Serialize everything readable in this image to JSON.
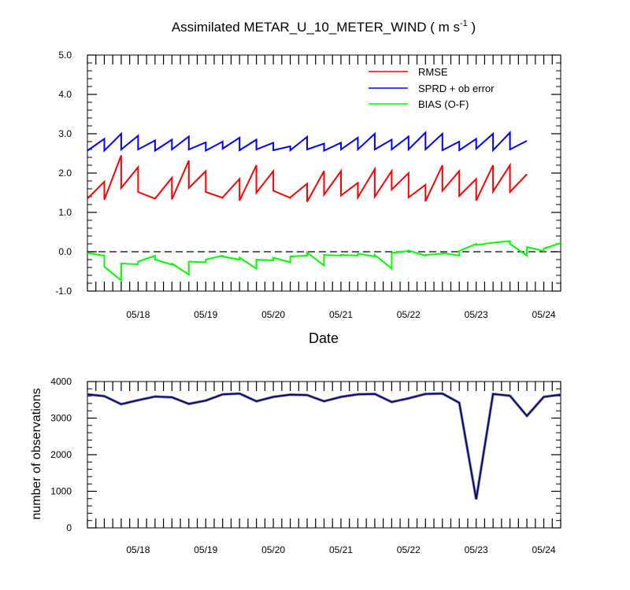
{
  "chart_data": [
    {
      "type": "line",
      "title_main": "Assimilated METAR_U_10_METER_WIND ( m s",
      "title_sup": "-1",
      "title_end": " )",
      "xlabel": "Date",
      "ylabel": "",
      "xlim": [
        0,
        7
      ],
      "ylim": [
        -1.0,
        5.0
      ],
      "yticks": [
        -1.0,
        0.0,
        1.0,
        2.0,
        3.0,
        4.0,
        5.0
      ],
      "ytick_labels": [
        "-1.0",
        "0.0",
        "1.0",
        "2.0",
        "3.0",
        "4.0",
        "5.0"
      ],
      "xtick_positions": [
        0.75,
        1.75,
        2.75,
        3.75,
        4.75,
        5.75,
        6.75
      ],
      "xtick_labels": [
        "05/18",
        "05/19",
        "05/20",
        "05/21",
        "05/22",
        "05/23",
        "05/24"
      ],
      "zero_line": true,
      "legend": {
        "placement": "top-right",
        "entries": [
          "RMSE",
          "SPRD + ob error",
          "BIAS (O-F)"
        ]
      },
      "series": [
        {
          "name": "RMSE",
          "color": "#ff0000",
          "points": [
            [
              0,
              1.35
            ],
            [
              0.25,
              1.78
            ],
            [
              0.25,
              1.32
            ],
            [
              0.5,
              2.45
            ],
            [
              0.5,
              1.62
            ],
            [
              0.75,
              2.15
            ],
            [
              0.75,
              1.52
            ],
            [
              1,
              1.35
            ],
            [
              1,
              1.35
            ],
            [
              1.25,
              1.88
            ],
            [
              1.25,
              1.33
            ],
            [
              1.5,
              2.32
            ],
            [
              1.5,
              1.62
            ],
            [
              1.75,
              2.05
            ],
            [
              1.75,
              1.52
            ],
            [
              2,
              1.37
            ],
            [
              2,
              1.38
            ],
            [
              2.25,
              1.85
            ],
            [
              2.25,
              1.3
            ],
            [
              2.5,
              2.2
            ],
            [
              2.5,
              1.5
            ],
            [
              2.75,
              2.05
            ],
            [
              2.75,
              1.55
            ],
            [
              3,
              1.37
            ],
            [
              3,
              1.38
            ],
            [
              3.25,
              1.73
            ],
            [
              3.25,
              1.27
            ],
            [
              3.5,
              2.05
            ],
            [
              3.5,
              1.45
            ],
            [
              3.75,
              2.05
            ],
            [
              3.75,
              1.43
            ],
            [
              4,
              1.75
            ],
            [
              4,
              1.38
            ],
            [
              4.25,
              2.1
            ],
            [
              4.25,
              1.4
            ],
            [
              4.5,
              2.05
            ],
            [
              4.5,
              1.58
            ],
            [
              4.75,
              2.0
            ],
            [
              4.75,
              1.38
            ],
            [
              5,
              1.7
            ],
            [
              5,
              1.28
            ],
            [
              5.25,
              2.2
            ],
            [
              5.25,
              1.55
            ],
            [
              5.5,
              2.05
            ],
            [
              5.5,
              1.42
            ],
            [
              5.75,
              1.85
            ],
            [
              5.75,
              1.3
            ],
            [
              6,
              2.2
            ],
            [
              6,
              1.53
            ],
            [
              6.25,
              2.2
            ],
            [
              6.25,
              1.52
            ],
            [
              6.5,
              1.97
            ]
          ]
        },
        {
          "name": "SPRD + ob error",
          "color": "#0000ff",
          "points": [
            [
              0,
              2.57
            ],
            [
              0.25,
              2.87
            ],
            [
              0.25,
              2.57
            ],
            [
              0.5,
              3.0
            ],
            [
              0.5,
              2.6
            ],
            [
              0.75,
              2.95
            ],
            [
              0.75,
              2.6
            ],
            [
              1,
              2.83
            ],
            [
              1,
              2.57
            ],
            [
              1.25,
              2.85
            ],
            [
              1.25,
              2.6
            ],
            [
              1.5,
              2.93
            ],
            [
              1.5,
              2.6
            ],
            [
              1.75,
              2.78
            ],
            [
              1.75,
              2.57
            ],
            [
              2,
              2.8
            ],
            [
              2,
              2.62
            ],
            [
              2.25,
              2.9
            ],
            [
              2.25,
              2.58
            ],
            [
              2.5,
              2.85
            ],
            [
              2.5,
              2.6
            ],
            [
              2.75,
              2.77
            ],
            [
              2.75,
              2.58
            ],
            [
              3,
              2.68
            ],
            [
              3,
              2.58
            ],
            [
              3.25,
              2.92
            ],
            [
              3.25,
              2.6
            ],
            [
              3.5,
              2.75
            ],
            [
              3.5,
              2.57
            ],
            [
              3.75,
              2.77
            ],
            [
              3.75,
              2.6
            ],
            [
              4,
              2.9
            ],
            [
              4,
              2.6
            ],
            [
              4.25,
              3.0
            ],
            [
              4.25,
              2.6
            ],
            [
              4.5,
              2.85
            ],
            [
              4.5,
              2.6
            ],
            [
              4.75,
              2.93
            ],
            [
              4.75,
              2.6
            ],
            [
              5,
              3.03
            ],
            [
              5,
              2.6
            ],
            [
              5.25,
              3.0
            ],
            [
              5.25,
              2.58
            ],
            [
              5.5,
              2.8
            ],
            [
              5.5,
              2.58
            ],
            [
              5.75,
              2.87
            ],
            [
              5.75,
              2.62
            ],
            [
              6,
              3.0
            ],
            [
              6,
              2.58
            ],
            [
              6.25,
              3.03
            ],
            [
              6.25,
              2.6
            ],
            [
              6.5,
              2.82
            ]
          ]
        },
        {
          "name": "BIAS (O-F)",
          "color": "#00ff00",
          "points": [
            [
              0,
              -0.03
            ],
            [
              0.25,
              -0.1
            ],
            [
              0.25,
              -0.38
            ],
            [
              0.5,
              -0.73
            ],
            [
              0.5,
              -0.3
            ],
            [
              0.75,
              -0.32
            ],
            [
              0.75,
              -0.25
            ],
            [
              1,
              -0.1
            ],
            [
              1,
              -0.2
            ],
            [
              1.25,
              -0.33
            ],
            [
              1.25,
              -0.3
            ],
            [
              1.5,
              -0.58
            ],
            [
              1.5,
              -0.25
            ],
            [
              1.75,
              -0.27
            ],
            [
              1.75,
              -0.2
            ],
            [
              2,
              -0.1
            ],
            [
              2,
              -0.12
            ],
            [
              2.25,
              -0.2
            ],
            [
              2.25,
              -0.15
            ],
            [
              2.5,
              -0.43
            ],
            [
              2.5,
              -0.2
            ],
            [
              2.75,
              -0.22
            ],
            [
              2.75,
              -0.15
            ],
            [
              3,
              -0.27
            ],
            [
              3,
              -0.12
            ],
            [
              3.25,
              -0.1
            ],
            [
              3.25,
              -0.02
            ],
            [
              3.5,
              -0.35
            ],
            [
              3.5,
              -0.08
            ],
            [
              3.75,
              -0.1
            ],
            [
              3.75,
              -0.08
            ],
            [
              4,
              -0.1
            ],
            [
              4,
              -0.05
            ],
            [
              4.25,
              -0.12
            ],
            [
              4.25,
              -0.08
            ],
            [
              4.5,
              -0.43
            ],
            [
              4.5,
              -0.03
            ],
            [
              4.75,
              0.02
            ],
            [
              4.75,
              0.03
            ],
            [
              5,
              -0.1
            ],
            [
              5,
              -0.08
            ],
            [
              5.25,
              -0.05
            ],
            [
              5.25,
              -0.03
            ],
            [
              5.5,
              -0.1
            ],
            [
              5.5,
              0.02
            ],
            [
              5.75,
              0.2
            ],
            [
              5.75,
              0.17
            ],
            [
              6,
              0.23
            ],
            [
              6,
              0.23
            ],
            [
              6.25,
              0.27
            ],
            [
              6.25,
              0.2
            ],
            [
              6.5,
              -0.1
            ],
            [
              6.5,
              0.12
            ],
            [
              6.75,
              0.02
            ],
            [
              6.75,
              0.08
            ],
            [
              7,
              0.22
            ]
          ]
        }
      ]
    },
    {
      "type": "line",
      "title": "",
      "xlabel": "",
      "ylabel": "number of observations",
      "xlim": [
        0,
        7
      ],
      "ylim": [
        0,
        4000
      ],
      "yticks": [
        0,
        1000,
        2000,
        3000,
        4000
      ],
      "ytick_labels": [
        "0",
        "1000",
        "2000",
        "3000",
        "4000"
      ],
      "xtick_positions": [
        0.75,
        1.75,
        2.75,
        3.75,
        4.75,
        5.75,
        6.75
      ],
      "xtick_labels": [
        "05/18",
        "05/19",
        "05/20",
        "05/21",
        "05/22",
        "05/23",
        "05/24"
      ],
      "series": [
        {
          "name": "number of observations",
          "color": "#000080",
          "points": [
            [
              0,
              3650
            ],
            [
              0.25,
              3600
            ],
            [
              0.5,
              3380
            ],
            [
              0.75,
              3490
            ],
            [
              1,
              3590
            ],
            [
              1.25,
              3570
            ],
            [
              1.5,
              3390
            ],
            [
              1.75,
              3480
            ],
            [
              2,
              3650
            ],
            [
              2.25,
              3670
            ],
            [
              2.5,
              3460
            ],
            [
              2.75,
              3580
            ],
            [
              3,
              3640
            ],
            [
              3.25,
              3630
            ],
            [
              3.5,
              3460
            ],
            [
              3.75,
              3580
            ],
            [
              4,
              3650
            ],
            [
              4.25,
              3660
            ],
            [
              4.5,
              3440
            ],
            [
              4.75,
              3540
            ],
            [
              5,
              3660
            ],
            [
              5.25,
              3670
            ],
            [
              5.5,
              3420
            ],
            [
              5.75,
              780
            ],
            [
              6,
              3660
            ],
            [
              6.25,
              3610
            ],
            [
              6.5,
              3060
            ],
            [
              6.75,
              3580
            ],
            [
              7,
              3640
            ]
          ]
        }
      ]
    }
  ]
}
